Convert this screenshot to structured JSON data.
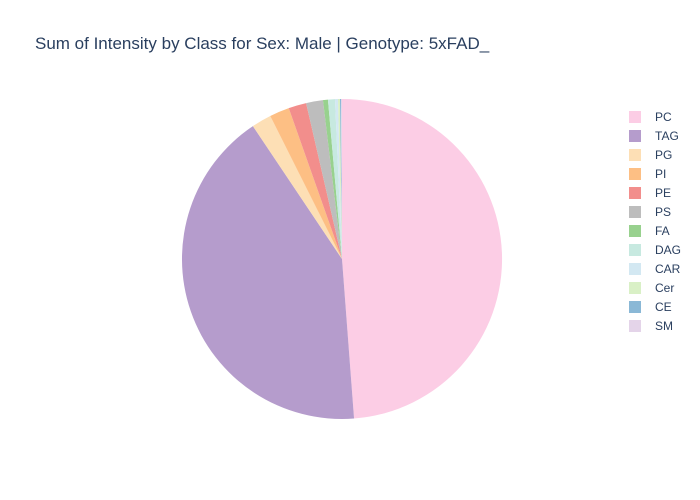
{
  "chart_data": {
    "type": "pie",
    "title": "Sum of Intensity by Class for Sex: Male | Genotype: 5xFAD_",
    "legend_position": "right",
    "slices": [
      {
        "label": "PC",
        "value": 48.8,
        "color": "#fccde5"
      },
      {
        "label": "TAG",
        "value": 41.8,
        "color": "#b59ccc"
      },
      {
        "label": "PG",
        "value": 2.0,
        "color": "#fddfb5"
      },
      {
        "label": "PI",
        "value": 2.0,
        "color": "#fdbf84"
      },
      {
        "label": "PE",
        "value": 1.8,
        "color": "#f28e8c"
      },
      {
        "label": "PS",
        "value": 1.7,
        "color": "#bdbdbd"
      },
      {
        "label": "FA",
        "value": 0.5,
        "color": "#98d18e"
      },
      {
        "label": "DAG",
        "value": 0.7,
        "color": "#c7e9e0"
      },
      {
        "label": "CAR",
        "value": 0.3,
        "color": "#d3e8f2"
      },
      {
        "label": "Cer",
        "value": 0.2,
        "color": "#d9f0c6"
      },
      {
        "label": "CE",
        "value": 0.1,
        "color": "#8ab8d6"
      },
      {
        "label": "SM",
        "value": 0.1,
        "color": "#e4d4e9"
      }
    ]
  }
}
